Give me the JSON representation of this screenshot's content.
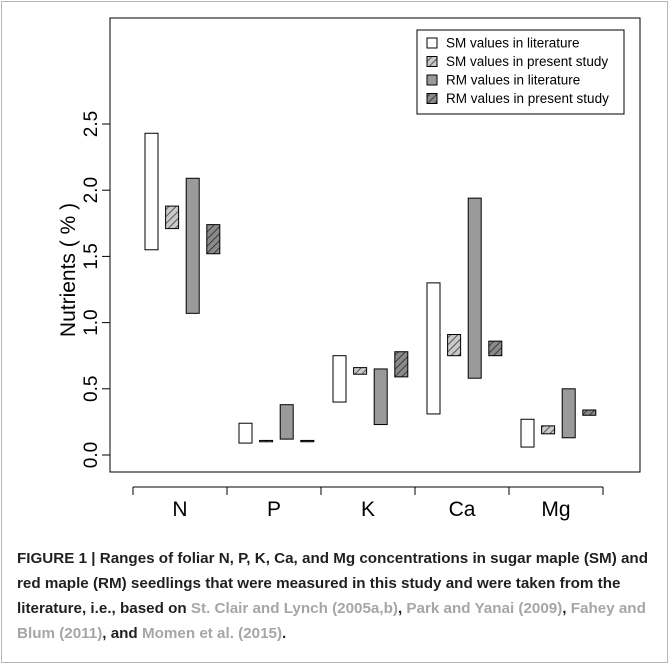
{
  "chart_data": {
    "type": "range_bar",
    "ylabel": "Nutrients ( % )",
    "ylim": [
      0,
      2.6
    ],
    "yticks": [
      "0.0",
      "0.5",
      "1.0",
      "1.5",
      "2.0",
      "2.5"
    ],
    "ytick_values": [
      0,
      0.5,
      1.0,
      1.5,
      2.0,
      2.5
    ],
    "categories": [
      "N",
      "P",
      "K",
      "Ca",
      "Mg"
    ],
    "series": [
      {
        "name": "SM values in literature",
        "fill": "#ffffff",
        "pattern": "none",
        "ranges": [
          [
            1.55,
            2.43
          ],
          [
            0.09,
            0.24
          ],
          [
            0.4,
            0.75
          ],
          [
            0.31,
            1.3
          ],
          [
            0.06,
            0.27
          ]
        ]
      },
      {
        "name": "SM values in present study",
        "fill": "#c8c8c8",
        "pattern": "hatch",
        "ranges": [
          [
            1.71,
            1.88
          ],
          [
            0.1,
            0.11
          ],
          [
            0.61,
            0.66
          ],
          [
            0.75,
            0.91
          ],
          [
            0.16,
            0.22
          ]
        ]
      },
      {
        "name": "RM values in literature",
        "fill": "#9a9a9a",
        "pattern": "none",
        "ranges": [
          [
            1.07,
            2.09
          ],
          [
            0.12,
            0.38
          ],
          [
            0.23,
            0.65
          ],
          [
            0.58,
            1.94
          ],
          [
            0.13,
            0.5
          ]
        ]
      },
      {
        "name": "RM values in present study",
        "fill": "#8a8a8a",
        "pattern": "hatch",
        "ranges": [
          [
            1.52,
            1.74
          ],
          [
            0.1,
            0.11
          ],
          [
            0.59,
            0.78
          ],
          [
            0.75,
            0.86
          ],
          [
            0.3,
            0.34
          ]
        ]
      }
    ],
    "legend_position": "top-right",
    "grid": false
  },
  "caption": {
    "lead": "FIGURE 1 | Ranges of foliar N, P, K, Ca, and Mg concentrations in sugar maple (SM) and red maple (RM) seedlings that were measured in this study and were taken from the literature, i.e., based on ",
    "ref1": "St. Clair and Lynch (2005a,b)",
    "sep1": ", ",
    "ref2": "Park and Yanai (2009)",
    "sep2": ", ",
    "ref3": "Fahey and Blum (2011)",
    "sep3": ", and ",
    "ref4": "Momen et al. (2015)",
    "tail": "."
  }
}
